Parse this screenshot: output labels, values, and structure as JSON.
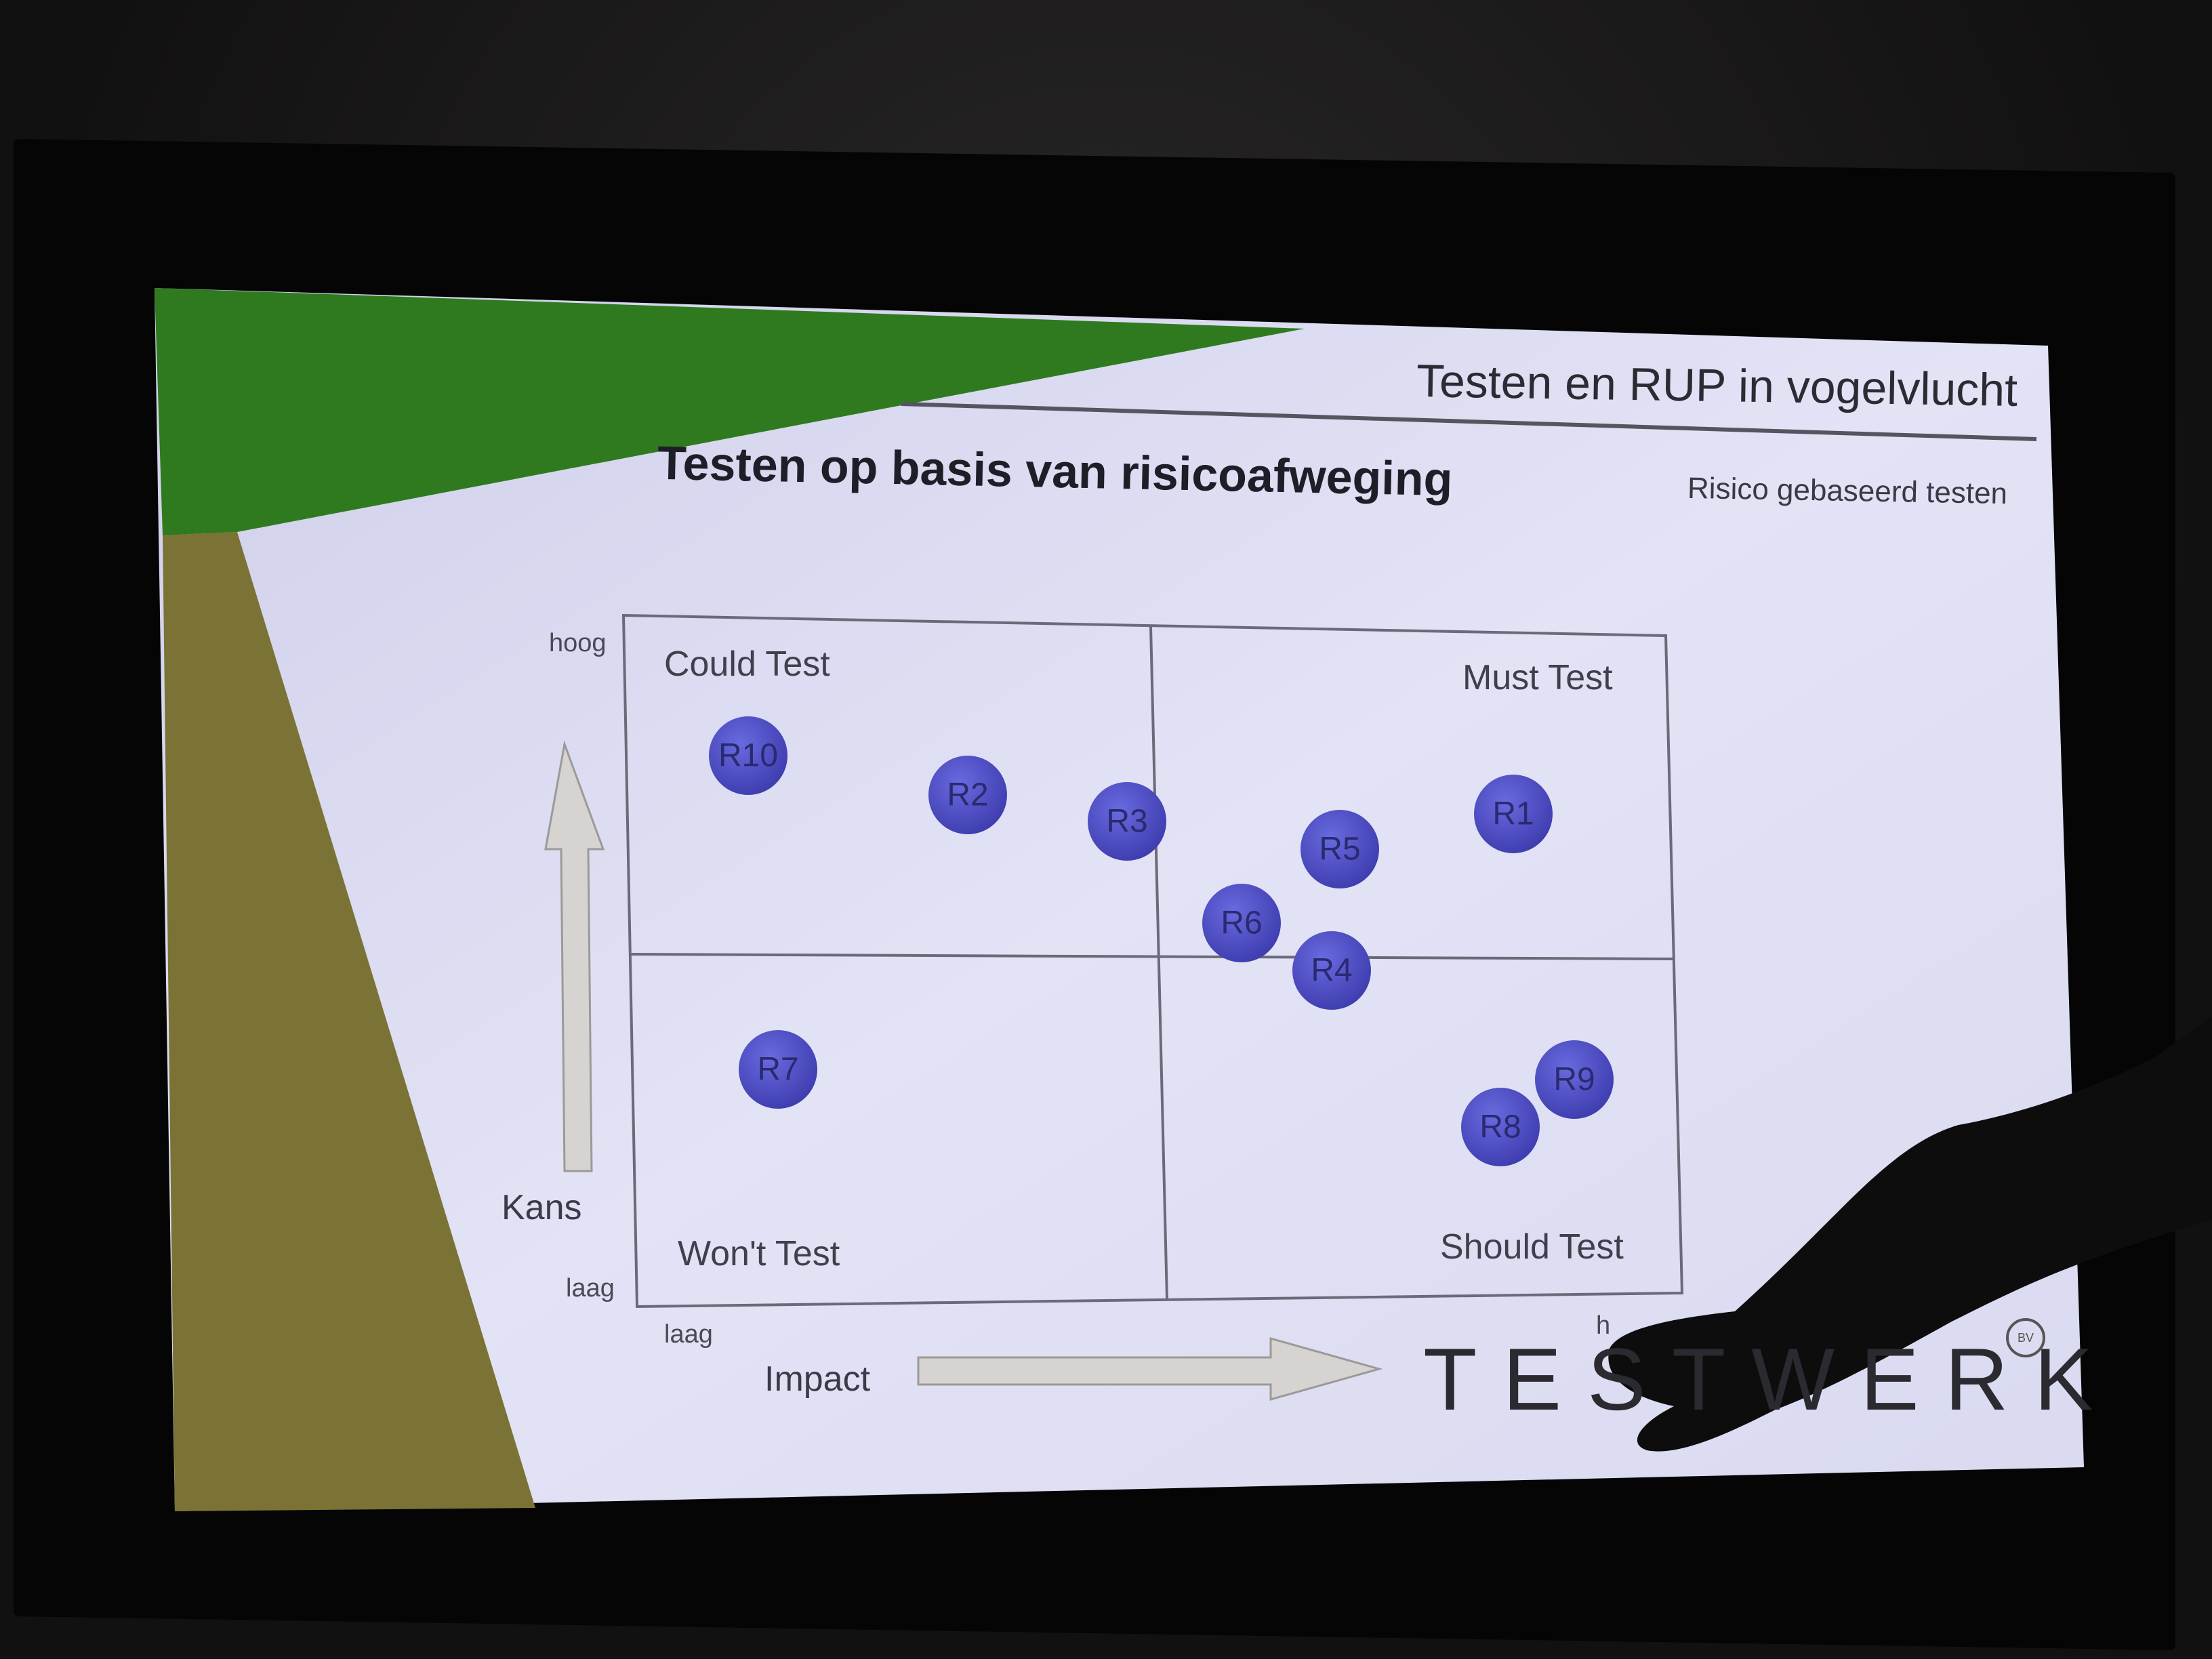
{
  "slide": {
    "header_title": "Testen en RUP in vogelvlucht",
    "main_title": "Testen op basis van risicoafweging",
    "subtitle": "Risico gebaseerd testen",
    "quadrants": {
      "top_left": "Could Test",
      "top_right": "Must Test",
      "bottom_left": "Won't Test",
      "bottom_right": "Should Test"
    },
    "y_axis": {
      "label": "Kans",
      "high": "hoog",
      "low": "laag"
    },
    "x_axis": {
      "label": "Impact",
      "low": "laag",
      "high": "h"
    },
    "risks": [
      {
        "label": "R10"
      },
      {
        "label": "R2"
      },
      {
        "label": "R3"
      },
      {
        "label": "R5"
      },
      {
        "label": "R1"
      },
      {
        "label": "R6"
      },
      {
        "label": "R4"
      },
      {
        "label": "R7"
      },
      {
        "label": "R9"
      },
      {
        "label": "R8"
      }
    ],
    "logo_text": "TESTWERK",
    "logo_mark": "BV"
  },
  "colors": {
    "slide_background": "#dcdcf0",
    "green_band": "#2f7a1f",
    "olive_band": "#7a7335",
    "risk_circle": "#5050c8",
    "frame": "#050505"
  },
  "icons": [
    "up-arrow-icon",
    "right-arrow-icon",
    "pointing-hand"
  ]
}
